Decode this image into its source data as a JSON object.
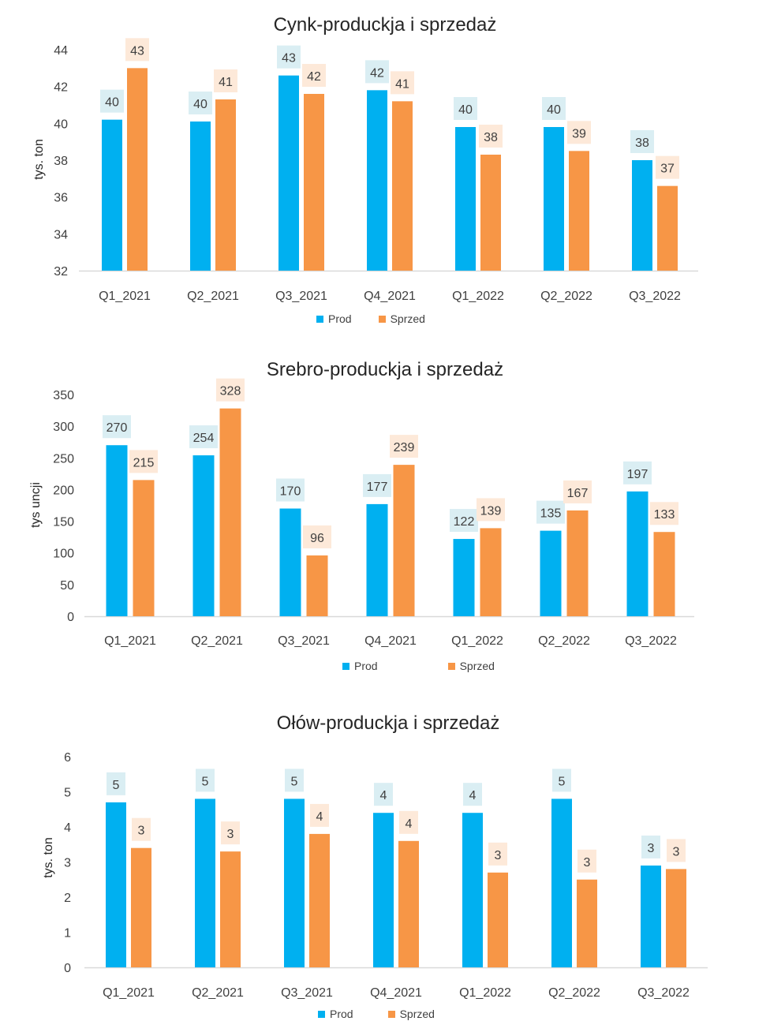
{
  "colors": {
    "prod": "#00B0F0",
    "sprzed": "#F79646",
    "prod_label_bg": "#DAEEF3",
    "sprzed_label_bg": "#FDE9D9"
  },
  "chart_data": [
    {
      "type": "bar",
      "title": "Cynk-produckja  i  sprzedaż",
      "ylabel": "tys. ton",
      "ylim": [
        32,
        44
      ],
      "yticks": [
        32,
        34,
        36,
        38,
        40,
        42,
        44
      ],
      "categories": [
        "Q1_2021",
        "Q2_2021",
        "Q3_2021",
        "Q4_2021",
        "Q1_2022",
        "Q2_2022",
        "Q3_2022"
      ],
      "series": [
        {
          "name": "Prod",
          "values": [
            40.2,
            40.1,
            42.6,
            41.8,
            39.8,
            39.8,
            38.0
          ],
          "labels": [
            "40",
            "40",
            "43",
            "42",
            "40",
            "40",
            "38"
          ]
        },
        {
          "name": "Sprzed",
          "values": [
            43.0,
            41.3,
            41.6,
            41.2,
            38.3,
            38.5,
            36.6
          ],
          "labels": [
            "43",
            "41",
            "42",
            "41",
            "38",
            "39",
            "37"
          ]
        }
      ]
    },
    {
      "type": "bar",
      "title": "Srebro-produckja  i  sprzedaż",
      "ylabel": "tys uncji",
      "ylim": [
        0,
        350
      ],
      "yticks": [
        0,
        50,
        100,
        150,
        200,
        250,
        300,
        350
      ],
      "categories": [
        "Q1_2021",
        "Q2_2021",
        "Q3_2021",
        "Q4_2021",
        "Q1_2022",
        "Q2_2022",
        "Q3_2022"
      ],
      "series": [
        {
          "name": "Prod",
          "values": [
            270,
            254,
            170,
            177,
            122,
            135,
            197
          ],
          "labels": [
            "270",
            "254",
            "170",
            "177",
            "122",
            "135",
            "197"
          ]
        },
        {
          "name": "Sprzed",
          "values": [
            215,
            328,
            96,
            239,
            139,
            167,
            133
          ],
          "labels": [
            "215",
            "328",
            "96",
            "239",
            "139",
            "167",
            "133"
          ]
        }
      ]
    },
    {
      "type": "bar",
      "title": "Ołów-produckja  i  sprzedaż",
      "ylabel": "tys. ton",
      "ylim": [
        0,
        6
      ],
      "yticks": [
        0,
        1,
        2,
        3,
        4,
        5,
        6
      ],
      "categories": [
        "Q1_2021",
        "Q2_2021",
        "Q3_2021",
        "Q4_2021",
        "Q1_2022",
        "Q2_2022",
        "Q3_2022"
      ],
      "series": [
        {
          "name": "Prod",
          "values": [
            4.7,
            4.8,
            4.8,
            4.4,
            4.4,
            4.8,
            2.9
          ],
          "labels": [
            "5",
            "5",
            "5",
            "4",
            "4",
            "5",
            "3"
          ]
        },
        {
          "name": "Sprzed",
          "values": [
            3.4,
            3.3,
            3.8,
            3.6,
            2.7,
            2.5,
            2.8
          ],
          "labels": [
            "3",
            "3",
            "4",
            "4",
            "3",
            "3",
            "3"
          ]
        }
      ]
    }
  ]
}
